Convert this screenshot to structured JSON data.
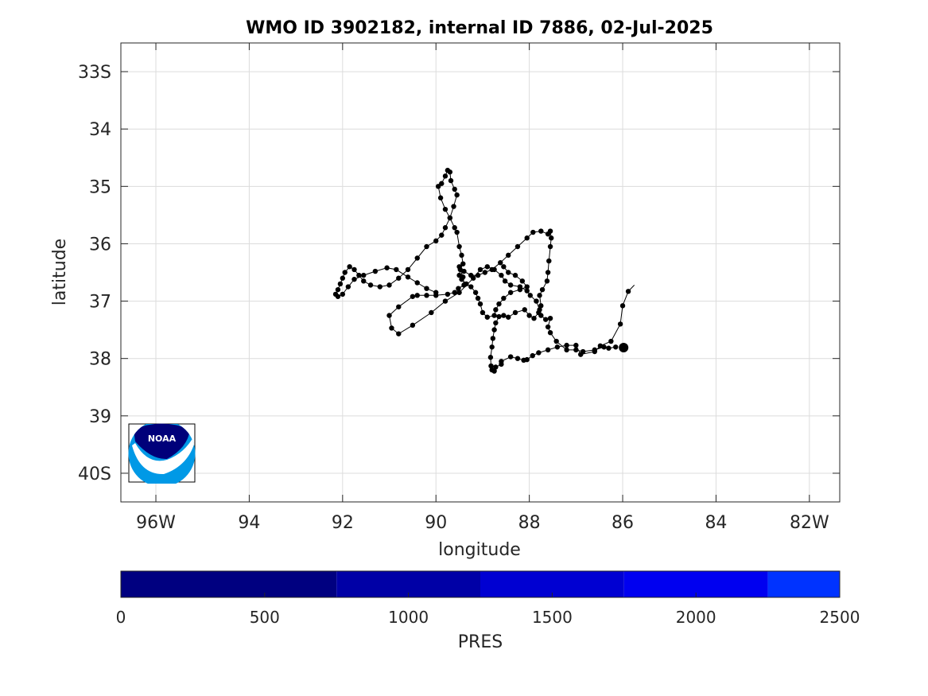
{
  "chart_data": {
    "type": "scatter",
    "title": "WMO ID 3902182, internal ID 7886, 02-Jul-2025",
    "xlabel": "longitude",
    "ylabel": "latitude",
    "xlim": [
      -96.75,
      -81.35
    ],
    "ylim": [
      -40.5,
      -32.5
    ],
    "grid": true,
    "x_ticks": [
      {
        "value": -96,
        "label": "96W"
      },
      {
        "value": -94,
        "label": "94"
      },
      {
        "value": -92,
        "label": "92"
      },
      {
        "value": -90,
        "label": "90"
      },
      {
        "value": -88,
        "label": "88"
      },
      {
        "value": -86,
        "label": "86"
      },
      {
        "value": -84,
        "label": "84"
      },
      {
        "value": -82,
        "label": "82W"
      }
    ],
    "y_ticks": [
      {
        "value": -33,
        "label": "33S"
      },
      {
        "value": -34,
        "label": "34"
      },
      {
        "value": -35,
        "label": "35"
      },
      {
        "value": -36,
        "label": "36"
      },
      {
        "value": -37,
        "label": "37"
      },
      {
        "value": -38,
        "label": "38"
      },
      {
        "value": -39,
        "label": "39"
      },
      {
        "value": -40,
        "label": "40S"
      }
    ],
    "track": {
      "color": "#000000",
      "start": {
        "lon": -85.75,
        "lat": -36.72
      },
      "last_position": {
        "lon": -85.98,
        "lat": -37.81
      },
      "points": [
        [
          -85.88,
          -36.83
        ],
        [
          -86.0,
          -37.08
        ],
        [
          -86.05,
          -37.4
        ],
        [
          -86.25,
          -37.7
        ],
        [
          -86.48,
          -37.78
        ],
        [
          -86.6,
          -37.88
        ],
        [
          -86.9,
          -37.93
        ],
        [
          -87.0,
          -37.77
        ],
        [
          -87.2,
          -37.77
        ],
        [
          -87.4,
          -37.8
        ],
        [
          -87.6,
          -37.85
        ],
        [
          -87.8,
          -37.9
        ],
        [
          -87.93,
          -37.95
        ],
        [
          -88.05,
          -38.02
        ],
        [
          -88.12,
          -38.03
        ],
        [
          -88.25,
          -38.0
        ],
        [
          -88.4,
          -37.97
        ],
        [
          -88.6,
          -38.05
        ],
        [
          -88.6,
          -38.1
        ],
        [
          -88.72,
          -38.15
        ],
        [
          -88.75,
          -38.22
        ],
        [
          -88.8,
          -38.2
        ],
        [
          -88.82,
          -38.13
        ],
        [
          -88.83,
          -37.98
        ],
        [
          -88.8,
          -37.8
        ],
        [
          -88.78,
          -37.65
        ],
        [
          -88.75,
          -37.5
        ],
        [
          -88.72,
          -37.38
        ],
        [
          -88.65,
          -37.27
        ],
        [
          -88.55,
          -37.25
        ],
        [
          -88.45,
          -37.28
        ],
        [
          -88.3,
          -37.2
        ],
        [
          -88.1,
          -37.15
        ],
        [
          -88.0,
          -37.25
        ],
        [
          -87.9,
          -37.3
        ],
        [
          -87.8,
          -37.2
        ],
        [
          -87.75,
          -37.08
        ],
        [
          -87.78,
          -36.9
        ],
        [
          -87.72,
          -36.8
        ],
        [
          -87.62,
          -36.65
        ],
        [
          -87.6,
          -36.5
        ],
        [
          -87.58,
          -36.3
        ],
        [
          -87.55,
          -36.05
        ],
        [
          -87.53,
          -35.9
        ],
        [
          -87.55,
          -35.78
        ],
        [
          -87.6,
          -35.83
        ],
        [
          -87.75,
          -35.78
        ],
        [
          -87.92,
          -35.8
        ],
        [
          -88.05,
          -35.9
        ],
        [
          -88.25,
          -36.05
        ],
        [
          -88.45,
          -36.2
        ],
        [
          -88.62,
          -36.33
        ],
        [
          -88.8,
          -36.45
        ],
        [
          -88.95,
          -36.5
        ],
        [
          -89.1,
          -36.55
        ],
        [
          -89.25,
          -36.55
        ],
        [
          -89.4,
          -36.48
        ],
        [
          -89.5,
          -36.4
        ],
        [
          -89.42,
          -36.58
        ],
        [
          -89.4,
          -36.72
        ],
        [
          -89.52,
          -36.78
        ],
        [
          -89.6,
          -36.85
        ],
        [
          -89.75,
          -36.88
        ],
        [
          -90.0,
          -36.9
        ],
        [
          -90.2,
          -36.9
        ],
        [
          -90.4,
          -36.9
        ],
        [
          -90.5,
          -36.92
        ],
        [
          -90.8,
          -37.1
        ],
        [
          -91.0,
          -37.25
        ],
        [
          -90.95,
          -37.47
        ],
        [
          -90.8,
          -37.57
        ],
        [
          -90.5,
          -37.42
        ],
        [
          -90.1,
          -37.2
        ],
        [
          -89.8,
          -37.0
        ],
        [
          -89.5,
          -36.85
        ],
        [
          -89.2,
          -36.6
        ],
        [
          -89.05,
          -36.45
        ],
        [
          -88.9,
          -36.4
        ],
        [
          -88.75,
          -36.45
        ],
        [
          -88.6,
          -36.55
        ],
        [
          -88.52,
          -36.65
        ],
        [
          -88.4,
          -36.72
        ],
        [
          -88.2,
          -36.75
        ],
        [
          -88.05,
          -36.82
        ],
        [
          -87.98,
          -36.9
        ],
        [
          -87.85,
          -37.0
        ],
        [
          -87.78,
          -37.15
        ],
        [
          -87.75,
          -37.25
        ],
        [
          -87.65,
          -37.32
        ],
        [
          -87.55,
          -37.3
        ],
        [
          -87.6,
          -37.45
        ],
        [
          -87.55,
          -37.55
        ],
        [
          -87.42,
          -37.7
        ],
        [
          -87.2,
          -37.85
        ],
        [
          -87.0,
          -37.85
        ],
        [
          -86.85,
          -37.88
        ],
        [
          -86.6,
          -37.85
        ],
        [
          -86.4,
          -37.8
        ],
        [
          -86.3,
          -37.82
        ],
        [
          -86.15,
          -37.8
        ]
      ],
      "points_b": [
        [
          -88.55,
          -36.4
        ],
        [
          -88.45,
          -36.5
        ],
        [
          -88.3,
          -36.55
        ],
        [
          -88.15,
          -36.65
        ],
        [
          -88.05,
          -36.75
        ],
        [
          -88.2,
          -36.8
        ],
        [
          -88.4,
          -36.85
        ],
        [
          -88.55,
          -36.95
        ],
        [
          -88.65,
          -37.05
        ],
        [
          -88.72,
          -37.15
        ],
        [
          -88.75,
          -37.25
        ],
        [
          -88.9,
          -37.28
        ],
        [
          -89.0,
          -37.2
        ],
        [
          -89.05,
          -37.05
        ],
        [
          -89.1,
          -36.95
        ],
        [
          -89.15,
          -36.85
        ],
        [
          -89.25,
          -36.75
        ],
        [
          -89.35,
          -36.7
        ],
        [
          -89.45,
          -36.62
        ],
        [
          -89.5,
          -36.55
        ],
        [
          -89.48,
          -36.45
        ],
        [
          -89.42,
          -36.35
        ],
        [
          -89.45,
          -36.2
        ],
        [
          -89.5,
          -36.05
        ],
        [
          -89.55,
          -35.8
        ],
        [
          -89.6,
          -35.72
        ],
        [
          -89.7,
          -35.55
        ],
        [
          -89.8,
          -35.4
        ],
        [
          -89.9,
          -35.2
        ],
        [
          -89.95,
          -35.0
        ],
        [
          -89.88,
          -34.95
        ],
        [
          -89.8,
          -34.82
        ],
        [
          -89.75,
          -34.72
        ],
        [
          -89.7,
          -34.75
        ],
        [
          -89.68,
          -34.9
        ],
        [
          -89.6,
          -35.05
        ],
        [
          -89.55,
          -35.15
        ],
        [
          -89.62,
          -35.35
        ],
        [
          -89.7,
          -35.55
        ],
        [
          -89.8,
          -35.72
        ],
        [
          -89.88,
          -35.85
        ],
        [
          -90.0,
          -35.95
        ],
        [
          -90.2,
          -36.05
        ],
        [
          -90.4,
          -36.25
        ],
        [
          -90.6,
          -36.45
        ],
        [
          -90.8,
          -36.6
        ],
        [
          -91.0,
          -36.72
        ],
        [
          -91.2,
          -36.75
        ],
        [
          -91.4,
          -36.72
        ],
        [
          -91.55,
          -36.65
        ],
        [
          -91.65,
          -36.55
        ],
        [
          -91.75,
          -36.45
        ],
        [
          -91.85,
          -36.4
        ],
        [
          -91.95,
          -36.5
        ],
        [
          -92.0,
          -36.6
        ],
        [
          -92.05,
          -36.7
        ],
        [
          -92.1,
          -36.8
        ],
        [
          -92.15,
          -36.88
        ],
        [
          -92.1,
          -36.92
        ],
        [
          -92.0,
          -36.88
        ],
        [
          -91.88,
          -36.75
        ],
        [
          -91.75,
          -36.62
        ],
        [
          -91.55,
          -36.55
        ],
        [
          -91.3,
          -36.48
        ],
        [
          -91.05,
          -36.42
        ],
        [
          -90.85,
          -36.45
        ],
        [
          -90.6,
          -36.58
        ],
        [
          -90.4,
          -36.68
        ],
        [
          -90.2,
          -36.78
        ],
        [
          -90.0,
          -36.85
        ]
      ]
    }
  },
  "colorbar": {
    "label": "PRES",
    "min": 0,
    "max": 2500,
    "ticks": [
      "0",
      "500",
      "1000",
      "1500",
      "2000",
      "2500"
    ],
    "segments": [
      {
        "from": 0,
        "to": 750,
        "color": "#000080"
      },
      {
        "from": 750,
        "to": 1250,
        "color": "#0000a6"
      },
      {
        "from": 1250,
        "to": 1750,
        "color": "#0000d2"
      },
      {
        "from": 1750,
        "to": 2250,
        "color": "#0000f0"
      },
      {
        "from": 2250,
        "to": 2500,
        "color": "#0033ff"
      }
    ]
  },
  "logo": {
    "text": "NOAA",
    "colors": {
      "navy": "#00007a",
      "sky": "#0099e6"
    }
  }
}
